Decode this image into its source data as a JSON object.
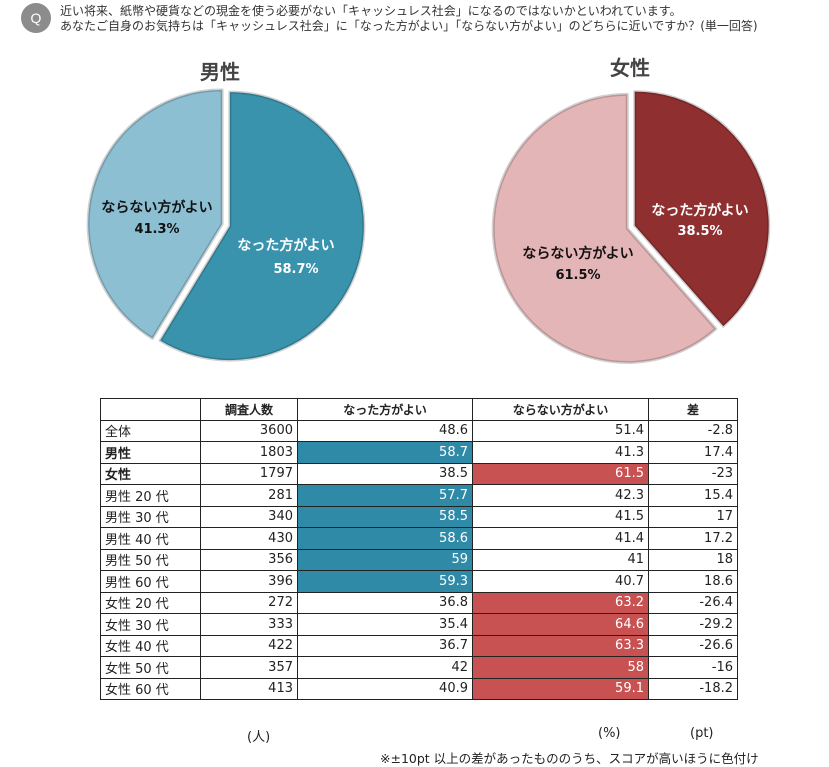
{
  "question": {
    "badge": "Q",
    "line1": "近い将来、紙幣や硬貨などの現金を使う必要がない「キャッシュレス社会」になるのではないかといわれています。",
    "line2": "あなたご自身のお気持ちは「キャッシュレス社会」に「なった方がよい」「ならない方がよい」のどちらに近いですか？(単一回答)"
  },
  "chart_data": [
    {
      "type": "pie",
      "title": "男性",
      "slices": [
        {
          "label": "なった方がよい",
          "value": 58.7,
          "value_text": "58.7%",
          "color": "#3a93ad"
        },
        {
          "label": "ならない方がよい",
          "value": 41.3,
          "value_text": "41.3%",
          "color": "#8dbfd3"
        }
      ]
    },
    {
      "type": "pie",
      "title": "女性",
      "slices": [
        {
          "label": "なった方がよい",
          "value": 38.5,
          "value_text": "38.5%",
          "color": "#8f2f30"
        },
        {
          "label": "ならない方がよい",
          "value": 61.5,
          "value_text": "61.5%",
          "color": "#e4b5b7"
        }
      ]
    },
    {
      "type": "table",
      "columns": [
        "",
        "調査人数",
        "なった方がよい",
        "ならない方がよい",
        "差"
      ],
      "rows": [
        {
          "label": "全体",
          "bold": false,
          "n": "3600",
          "yes": "48.6",
          "no": "51.4",
          "diff": "-2.8",
          "hl": ""
        },
        {
          "label": "男性",
          "bold": true,
          "n": "1803",
          "yes": "58.7",
          "no": "41.3",
          "diff": "17.4",
          "hl": "yes"
        },
        {
          "label": "女性",
          "bold": true,
          "n": "1797",
          "yes": "38.5",
          "no": "61.5",
          "diff": "-23",
          "hl": "no"
        },
        {
          "label": "男性 20 代",
          "bold": false,
          "n": "281",
          "yes": "57.7",
          "no": "42.3",
          "diff": "15.4",
          "hl": "yes"
        },
        {
          "label": "男性 30 代",
          "bold": false,
          "n": "340",
          "yes": "58.5",
          "no": "41.5",
          "diff": "17",
          "hl": "yes"
        },
        {
          "label": "男性 40 代",
          "bold": false,
          "n": "430",
          "yes": "58.6",
          "no": "41.4",
          "diff": "17.2",
          "hl": "yes"
        },
        {
          "label": "男性 50 代",
          "bold": false,
          "n": "356",
          "yes": "59",
          "no": "41",
          "diff": "18",
          "hl": "yes"
        },
        {
          "label": "男性 60 代",
          "bold": false,
          "n": "396",
          "yes": "59.3",
          "no": "40.7",
          "diff": "18.6",
          "hl": "yes"
        },
        {
          "label": "女性 20 代",
          "bold": false,
          "n": "272",
          "yes": "36.8",
          "no": "63.2",
          "diff": "-26.4",
          "hl": "no"
        },
        {
          "label": "女性 30 代",
          "bold": false,
          "n": "333",
          "yes": "35.4",
          "no": "64.6",
          "diff": "-29.2",
          "hl": "no"
        },
        {
          "label": "女性 40 代",
          "bold": false,
          "n": "422",
          "yes": "36.7",
          "no": "63.3",
          "diff": "-26.6",
          "hl": "no"
        },
        {
          "label": "女性 50 代",
          "bold": false,
          "n": "357",
          "yes": "42",
          "no": "58",
          "diff": "-16",
          "hl": "no"
        },
        {
          "label": "女性 60 代",
          "bold": false,
          "n": "413",
          "yes": "40.9",
          "no": "59.1",
          "diff": "-18.2",
          "hl": "no"
        }
      ],
      "units": {
        "n": "(人)",
        "pct": "(%)",
        "diff": "(pt)"
      },
      "highlight_colors": {
        "yes": "#2e8aa6",
        "no": "#c85252"
      }
    }
  ],
  "footnote": "※±10pt 以上の差があったもののうち、スコアが高いほうに色付け"
}
